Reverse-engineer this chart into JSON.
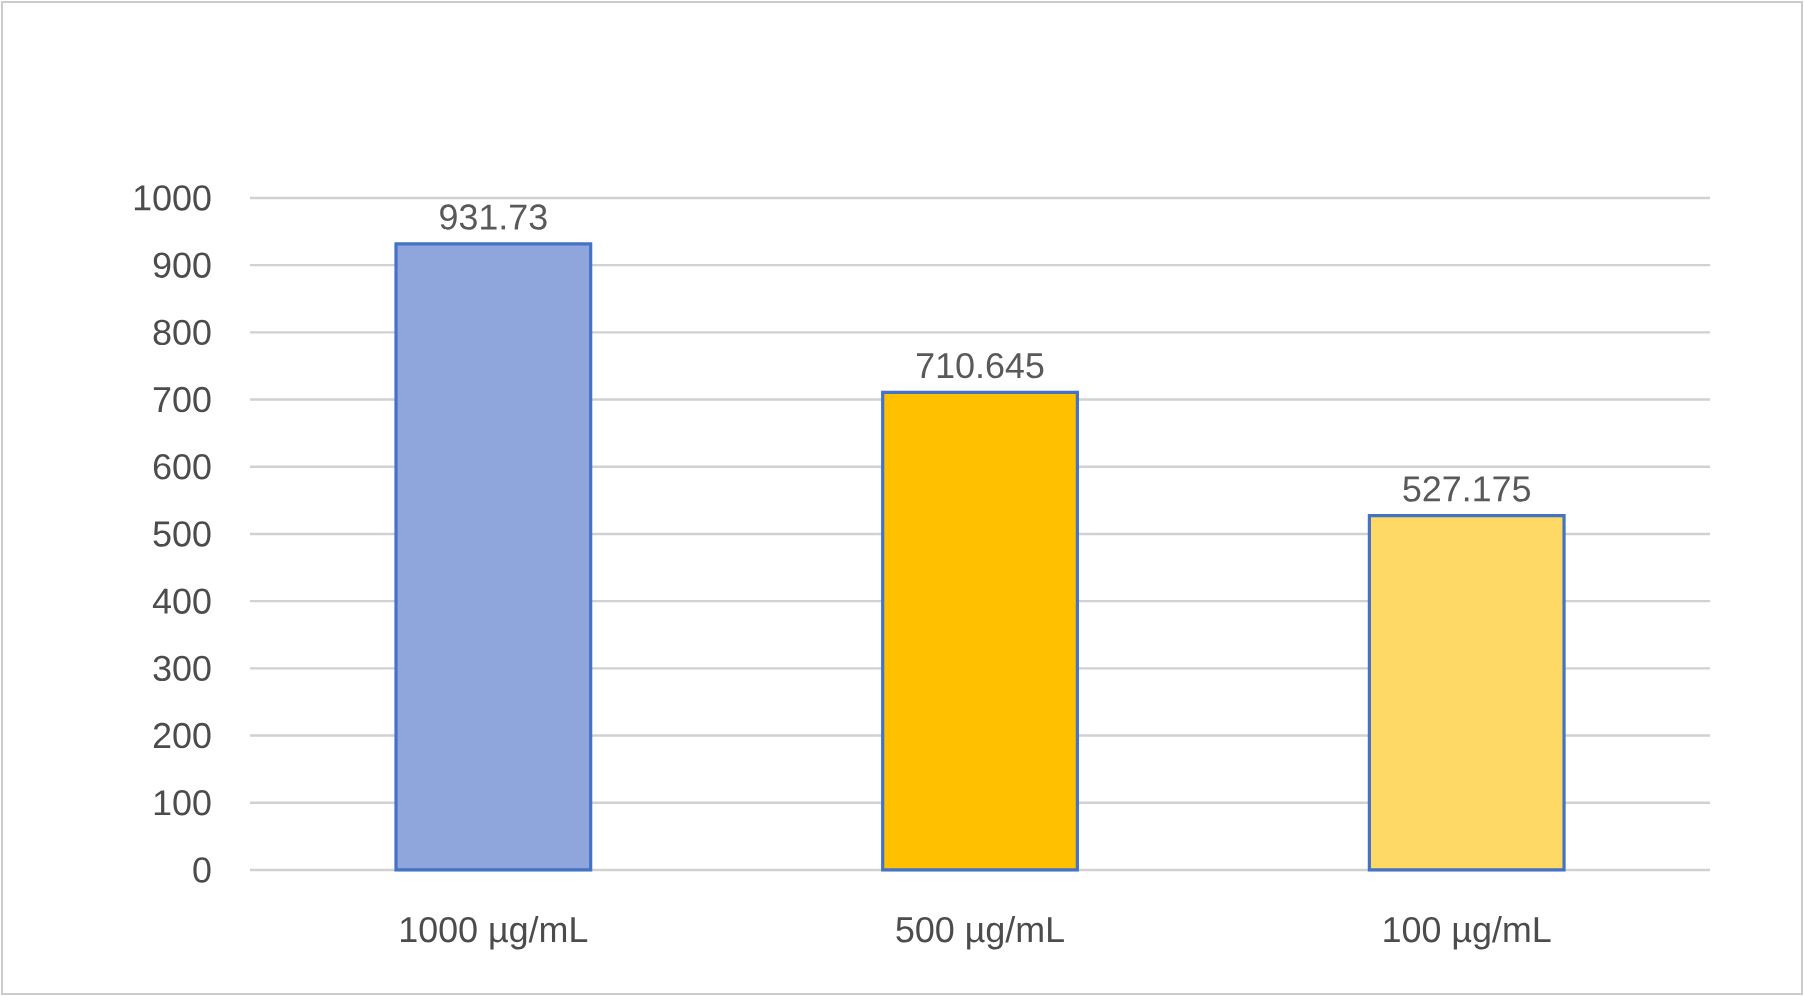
{
  "chart_data": {
    "type": "bar",
    "categories": [
      "1000 µg/mL",
      "500 µg/mL",
      "100 µg/mL"
    ],
    "values": [
      931.73,
      710.645,
      527.175
    ],
    "colors": [
      "#8fa6dd",
      "#ffc000",
      "#ffd966"
    ],
    "ylim": [
      0,
      1000
    ],
    "yticks": [
      0,
      100,
      200,
      300,
      400,
      500,
      600,
      700,
      800,
      900,
      1000
    ],
    "grid": "y",
    "data_labels": true
  }
}
